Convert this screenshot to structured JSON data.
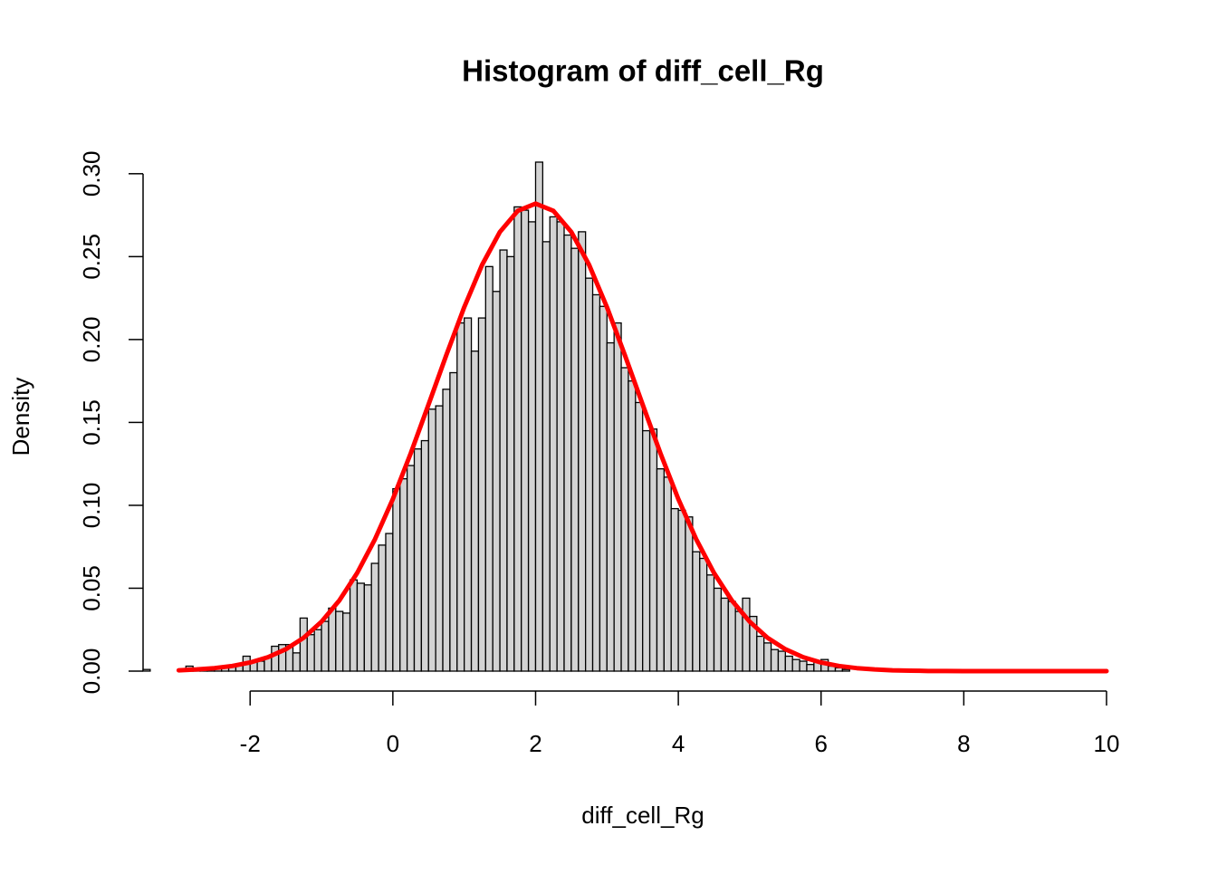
{
  "chart_data": {
    "type": "histogram",
    "title": "Histogram of diff_cell_Rg",
    "x_label": "diff_cell_Rg",
    "y_label": "Density",
    "bins": [
      -3.5,
      -3.4,
      -3.3,
      -3.2,
      -3.1,
      -3.0,
      -2.9,
      -2.8,
      -2.7,
      -2.6,
      -2.5,
      -2.4,
      -2.3,
      -2.2,
      -2.1,
      -2.0,
      -1.9,
      -1.8,
      -1.7,
      -1.6,
      -1.5,
      -1.4,
      -1.3,
      -1.2,
      -1.1,
      -1.0,
      -0.9,
      -0.8,
      -0.7,
      -0.6,
      -0.5,
      -0.4,
      -0.3,
      -0.2,
      -0.1,
      0.0,
      0.1,
      0.2,
      0.3,
      0.4,
      0.5,
      0.6,
      0.7,
      0.8,
      0.9,
      1.0,
      1.1,
      1.2,
      1.3,
      1.4,
      1.5,
      1.6,
      1.7,
      1.8,
      1.9,
      2.0,
      2.1,
      2.2,
      2.3,
      2.4,
      2.5,
      2.6,
      2.7,
      2.8,
      2.9,
      3.0,
      3.1,
      3.2,
      3.3,
      3.4,
      3.5,
      3.6,
      3.7,
      3.8,
      3.9,
      4.0,
      4.1,
      4.2,
      4.3,
      4.4,
      4.5,
      4.6,
      4.7,
      4.8,
      4.9,
      5.0,
      5.1,
      5.2,
      5.3,
      5.4,
      5.5,
      5.6,
      5.7,
      5.8,
      5.9,
      6.0,
      6.1,
      6.2,
      6.3,
      6.4,
      6.5
    ],
    "values": [
      0.001,
      0,
      0,
      0,
      0,
      0.001,
      0.003,
      0.001,
      0.001,
      0.001,
      0.002,
      0.002,
      0.003,
      0.004,
      0.009,
      0.006,
      0.006,
      0.008,
      0.015,
      0.016,
      0.016,
      0.011,
      0.032,
      0.022,
      0.025,
      0.03,
      0.038,
      0.036,
      0.035,
      0.055,
      0.053,
      0.052,
      0.065,
      0.076,
      0.083,
      0.11,
      0.116,
      0.124,
      0.134,
      0.139,
      0.158,
      0.16,
      0.17,
      0.18,
      0.21,
      0.213,
      0.193,
      0.213,
      0.244,
      0.229,
      0.254,
      0.25,
      0.28,
      0.278,
      0.271,
      0.307,
      0.259,
      0.274,
      0.271,
      0.263,
      0.255,
      0.265,
      0.237,
      0.227,
      0.22,
      0.198,
      0.21,
      0.183,
      0.175,
      0.162,
      0.145,
      0.146,
      0.122,
      0.117,
      0.098,
      0.097,
      0.093,
      0.072,
      0.068,
      0.058,
      0.05,
      0.044,
      0.042,
      0.036,
      0.044,
      0.033,
      0.021,
      0.017,
      0.013,
      0.012,
      0.009,
      0.007,
      0.006,
      0.004,
      0.006,
      0.007,
      0.003,
      0.002,
      0.001,
      0
    ],
    "color": "#d3d3d3",
    "curve": {
      "color": "#ff0000",
      "x": [
        -3,
        -2.75,
        -2.5,
        -2.25,
        -2,
        -1.75,
        -1.5,
        -1.25,
        -1,
        -0.75,
        -0.5,
        -0.25,
        0,
        0.25,
        0.5,
        0.75,
        1,
        1.25,
        1.5,
        1.75,
        2,
        2.25,
        2.5,
        2.75,
        3,
        3.25,
        3.5,
        3.75,
        4,
        4.25,
        4.5,
        4.75,
        5,
        5.25,
        5.5,
        5.75,
        6,
        6.25,
        6.5,
        6.75,
        7,
        7.25,
        7.5,
        7.75,
        8,
        8.25,
        8.5,
        8.75,
        9,
        9.25,
        9.5,
        9.75,
        10
      ],
      "values": [
        0.0005,
        0.001,
        0.0018,
        0.0031,
        0.0052,
        0.0084,
        0.0132,
        0.0201,
        0.0298,
        0.0426,
        0.0592,
        0.0796,
        0.1038,
        0.1313,
        0.1608,
        0.1907,
        0.2195,
        0.245,
        0.2649,
        0.2776,
        0.282,
        0.2776,
        0.2649,
        0.245,
        0.2195,
        0.1907,
        0.1608,
        0.1313,
        0.1038,
        0.0796,
        0.0592,
        0.0426,
        0.0298,
        0.0201,
        0.0132,
        0.0084,
        0.0052,
        0.0031,
        0.0018,
        0.001,
        0.0005,
        0.0003,
        0.0001,
        0.0001,
        0,
        0,
        0,
        0,
        0,
        0,
        0,
        0,
        0
      ]
    },
    "xlim": [
      -3.5,
      10
    ],
    "ylim": [
      0,
      0.307
    ],
    "xticks": [
      -2,
      0,
      2,
      4,
      6,
      8,
      10
    ],
    "yticks": [
      {
        "value": 0,
        "label": "0.00"
      },
      {
        "value": 0.05,
        "label": "0.05"
      },
      {
        "value": 0.1,
        "label": "0.10"
      },
      {
        "value": 0.15,
        "label": "0.15"
      },
      {
        "value": 0.2,
        "label": "0.20"
      },
      {
        "value": 0.25,
        "label": "0.25"
      },
      {
        "value": 0.3,
        "label": "0.30"
      }
    ]
  }
}
